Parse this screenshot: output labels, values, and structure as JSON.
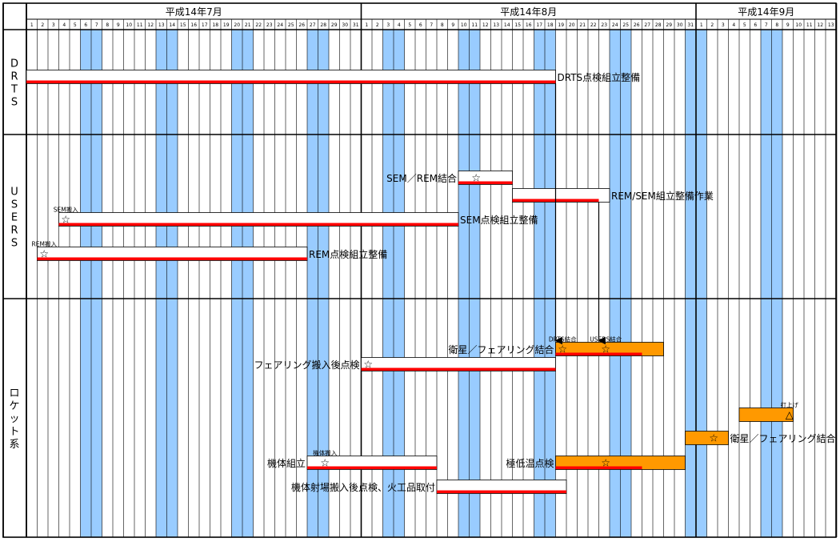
{
  "chart_data": {
    "type": "gantt",
    "months": [
      {
        "label": "平成14年7月",
        "days": 31
      },
      {
        "label": "平成14年8月",
        "days": 31
      },
      {
        "label": "平成14年9月",
        "days": 13
      }
    ],
    "weekend_days": [
      [
        "7/6",
        "7/7"
      ],
      [
        "7/13",
        "7/14"
      ],
      [
        "7/20",
        "7/21"
      ],
      [
        "7/27",
        "7/28"
      ],
      [
        "8/3",
        "8/4"
      ],
      [
        "8/10",
        "8/11"
      ],
      [
        "8/17",
        "8/18"
      ],
      [
        "8/24",
        "8/25"
      ],
      [
        "8/31",
        "9/1"
      ],
      [
        "9/7",
        "9/8"
      ]
    ],
    "sections": [
      {
        "key": "drts",
        "label": "DRTS"
      },
      {
        "key": "users",
        "label": "USERS"
      },
      {
        "key": "rocket",
        "label": "ロケット系"
      }
    ],
    "tasks": [
      {
        "section": "drts",
        "label": "DRTS点検組立整備",
        "start": "7/1",
        "end": "8/18",
        "progress_end": "8/18",
        "fill": "white",
        "label_side": "right"
      },
      {
        "section": "users",
        "label": "SEM／REM結合",
        "start": "8/10",
        "end": "8/14",
        "progress_end": "8/14",
        "fill": "white",
        "label_side": "left",
        "milestones": [
          {
            "date": "8/11",
            "symbol": "☆"
          }
        ]
      },
      {
        "section": "users",
        "label": "REM/SEM組立整備作業",
        "start": "8/15",
        "end": "8/23",
        "progress_end": "8/22",
        "fill": "white",
        "label_side": "right"
      },
      {
        "section": "users",
        "label": "SEM点検組立整備",
        "start": "7/4",
        "end": "8/9",
        "progress_end": "8/9",
        "fill": "white",
        "label_side": "right",
        "milestones": [
          {
            "date": "7/4",
            "symbol": "☆",
            "note": "SEM搬入"
          }
        ]
      },
      {
        "section": "users",
        "label": "REM点検組立整備",
        "start": "7/2",
        "end": "7/26",
        "progress_end": "7/26",
        "fill": "white",
        "label_side": "right",
        "milestones": [
          {
            "date": "7/2",
            "symbol": "☆",
            "note": "REM搬入"
          }
        ]
      },
      {
        "section": "rocket",
        "label": "衛星／フェアリング結合",
        "start": "8/19",
        "end": "8/28",
        "progress_end": "8/26",
        "fill": "orange",
        "label_side": "left",
        "milestones": [
          {
            "date": "8/19",
            "symbol": "☆",
            "note": "DRTS結合"
          },
          {
            "date": "8/23",
            "symbol": "☆",
            "note": "USERS結合"
          }
        ]
      },
      {
        "section": "rocket",
        "label": "フェアリング搬入後点検",
        "start": "8/1",
        "end": "8/18",
        "progress_end": "8/18",
        "fill": "white",
        "label_side": "left",
        "milestones": [
          {
            "date": "8/1",
            "symbol": "☆"
          }
        ]
      },
      {
        "section": "rocket",
        "label": "打上げ",
        "start": "9/5",
        "end": "9/9",
        "progress_end": null,
        "fill": "orange",
        "label_side": "none",
        "milestones": [
          {
            "date": "9/9",
            "symbol": "△",
            "note": "打上げ"
          }
        ]
      },
      {
        "section": "rocket",
        "label": "衛星／フェアリング結合",
        "start": "8/31",
        "end": "9/3",
        "progress_end": null,
        "fill": "orange",
        "label_side": "right",
        "milestones": [
          {
            "date": "9/2",
            "symbol": "☆"
          }
        ]
      },
      {
        "section": "rocket",
        "label": "機体組立",
        "start": "7/27",
        "end": "8/7",
        "progress_end": "8/7",
        "fill": "white",
        "label_side": "left",
        "milestones": [
          {
            "date": "7/28",
            "symbol": "☆",
            "note": "機体搬入"
          }
        ]
      },
      {
        "section": "rocket",
        "label": "極低温点検",
        "start": "8/19",
        "end": "8/30",
        "progress_end": "8/26",
        "fill": "orange",
        "label_side": "left",
        "milestones": [
          {
            "date": "8/23",
            "symbol": "☆"
          }
        ]
      },
      {
        "section": "rocket",
        "label": "機体射場搬入後点検、火工品取付",
        "start": "8/8",
        "end": "8/19",
        "progress_end": "8/19",
        "fill": "white",
        "label_side": "left"
      }
    ],
    "dependencies": [
      {
        "from": "DRTS点検組立整備",
        "to": "DRTS結合",
        "date": "8/19"
      },
      {
        "from": "REM/SEM組立整備作業",
        "to": "USERS結合",
        "date": "8/23"
      }
    ],
    "colors": {
      "weekend": "#99ccff",
      "progress": "#ff0000",
      "orange": "#ff9900",
      "grid": "#000000"
    }
  }
}
